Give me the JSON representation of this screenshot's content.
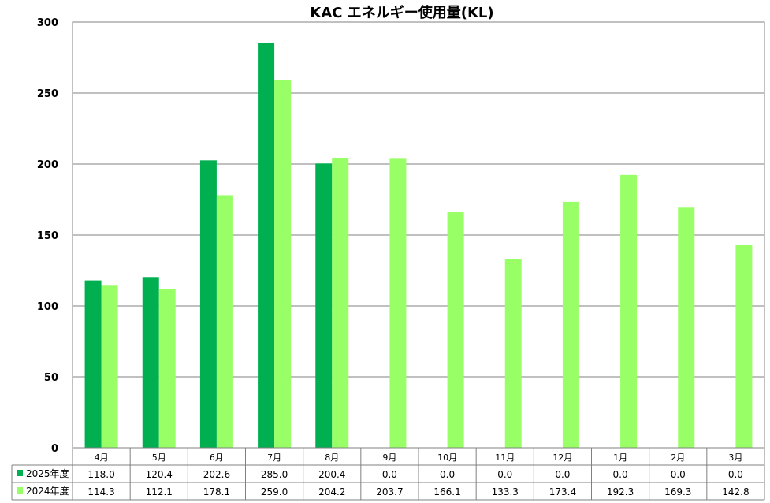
{
  "chart_data": {
    "type": "bar",
    "title": "KAC エネルギー使用量(KL)",
    "categories": [
      "4月",
      "5月",
      "6月",
      "7月",
      "8月",
      "9月",
      "10月",
      "11月",
      "12月",
      "1月",
      "2月",
      "3月"
    ],
    "series": [
      {
        "name": "2025年度",
        "color": "#00b050",
        "values": [
          118.0,
          120.4,
          202.6,
          285.0,
          200.4,
          0.0,
          0.0,
          0.0,
          0.0,
          0.0,
          0.0,
          0.0
        ]
      },
      {
        "name": "2024年度",
        "color": "#99ff66",
        "values": [
          114.3,
          112.1,
          178.1,
          259.0,
          204.2,
          203.7,
          166.1,
          133.3,
          173.4,
          192.3,
          169.3,
          142.8
        ]
      }
    ],
    "ylim": [
      0,
      300
    ],
    "yticks": [
      "0",
      "50",
      "100",
      "150",
      "200",
      "250",
      "300"
    ],
    "table_values": [
      [
        "118.0",
        "120.4",
        "202.6",
        "285.0",
        "200.4",
        "0.0",
        "0.0",
        "0.0",
        "0.0",
        "0.0",
        "0.0",
        "0.0"
      ],
      [
        "114.3",
        "112.1",
        "178.1",
        "259.0",
        "204.2",
        "203.7",
        "166.1",
        "133.3",
        "173.4",
        "192.3",
        "169.3",
        "142.8"
      ]
    ],
    "grid": true,
    "legend": "data-table"
  }
}
